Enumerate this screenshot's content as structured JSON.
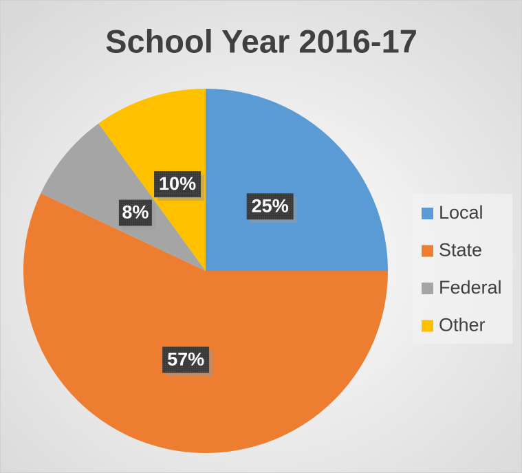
{
  "chart_data": {
    "type": "pie",
    "title": "School Year 2016-17",
    "categories": [
      "Local",
      "State",
      "Federal",
      "Other"
    ],
    "values": [
      25,
      57,
      8,
      10
    ],
    "value_labels": [
      "25%",
      "57%",
      "8%",
      "10%"
    ],
    "colors": [
      "#5b9bd5",
      "#ed7d31",
      "#a5a5a5",
      "#ffc000"
    ],
    "legend": "right"
  }
}
